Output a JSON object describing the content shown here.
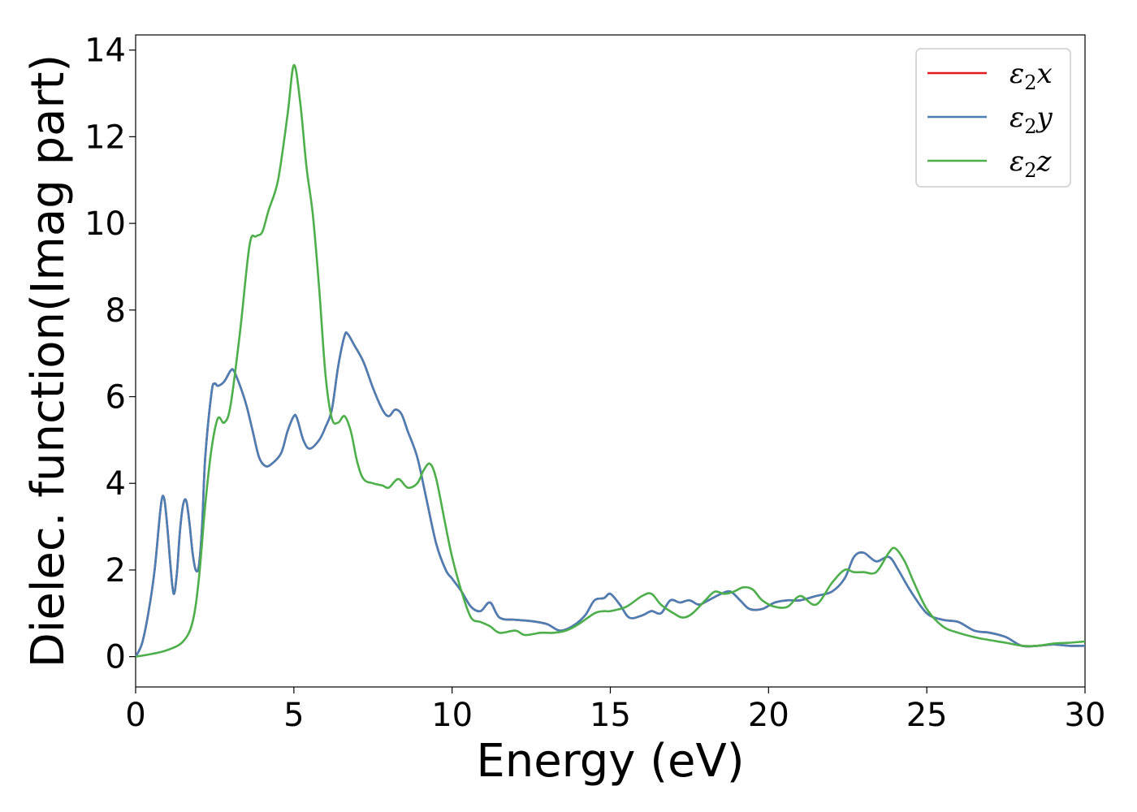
{
  "chart_data": {
    "type": "line",
    "xlabel": "Energy (eV)",
    "ylabel": "Dielec. function(Imag part)",
    "xlim": [
      0,
      30
    ],
    "ylim": [
      -0.7,
      14.35
    ],
    "xticks": [
      0,
      5,
      10,
      15,
      20,
      25,
      30
    ],
    "yticks": [
      0,
      2,
      4,
      6,
      8,
      10,
      12,
      14
    ],
    "grid": false,
    "legend_position": "top-right",
    "series": [
      {
        "name": "ε2x",
        "symbol": "ε",
        "subscript": "2",
        "suffix": "x",
        "color": "#e41a1c",
        "x": [
          0,
          0.2,
          0.4,
          0.6,
          0.8,
          0.9,
          1.0,
          1.1,
          1.2,
          1.3,
          1.4,
          1.5,
          1.6,
          1.7,
          1.8,
          1.9,
          2.0,
          2.1,
          2.2,
          2.4,
          2.5,
          2.6,
          2.8,
          3.0,
          3.1,
          3.3,
          3.5,
          3.7,
          3.9,
          4.1,
          4.3,
          4.6,
          4.8,
          5.0,
          5.1,
          5.3,
          5.5,
          5.8,
          6.0,
          6.2,
          6.4,
          6.6,
          6.7,
          6.9,
          7.2,
          7.5,
          7.8,
          8.0,
          8.2,
          8.4,
          8.6,
          8.9,
          9.2,
          9.5,
          9.8,
          10.0,
          10.3,
          10.6,
          10.9,
          11.2,
          11.5,
          12.0,
          12.5,
          13.0,
          13.4,
          13.8,
          14.2,
          14.5,
          14.8,
          15.0,
          15.3,
          15.6,
          16.0,
          16.3,
          16.6,
          16.9,
          17.2,
          17.5,
          17.8,
          18.1,
          18.5,
          18.8,
          19.1,
          19.4,
          19.8,
          20.2,
          20.6,
          21.0,
          21.5,
          22.0,
          22.4,
          22.7,
          23.0,
          23.4,
          23.8,
          24.1,
          24.5,
          25.0,
          25.5,
          26.0,
          26.5,
          27.0,
          27.5,
          28.0,
          28.5,
          29.0,
          29.5,
          30.0
        ],
        "values": [
          0,
          0.3,
          1.0,
          2.0,
          3.5,
          3.65,
          3.0,
          2.1,
          1.45,
          1.9,
          2.9,
          3.5,
          3.6,
          3.1,
          2.4,
          2.0,
          2.1,
          3.0,
          4.6,
          6.1,
          6.3,
          6.25,
          6.35,
          6.6,
          6.6,
          6.25,
          5.8,
          5.2,
          4.6,
          4.4,
          4.45,
          4.7,
          5.2,
          5.55,
          5.5,
          5.0,
          4.8,
          5.0,
          5.3,
          5.7,
          6.7,
          7.4,
          7.45,
          7.2,
          6.8,
          6.2,
          5.7,
          5.55,
          5.7,
          5.6,
          5.2,
          4.6,
          3.6,
          2.6,
          2.0,
          1.8,
          1.5,
          1.15,
          1.05,
          1.25,
          0.9,
          0.85,
          0.82,
          0.75,
          0.6,
          0.7,
          0.95,
          1.3,
          1.35,
          1.45,
          1.2,
          0.9,
          0.95,
          1.05,
          1.0,
          1.3,
          1.25,
          1.3,
          1.2,
          1.3,
          1.45,
          1.5,
          1.3,
          1.1,
          1.1,
          1.25,
          1.3,
          1.3,
          1.4,
          1.5,
          1.8,
          2.3,
          2.4,
          2.2,
          2.3,
          2.0,
          1.5,
          1.0,
          0.85,
          0.8,
          0.6,
          0.55,
          0.45,
          0.25,
          0.25,
          0.28,
          0.25,
          0.25
        ]
      },
      {
        "name": "ε2y",
        "symbol": "ε",
        "subscript": "2",
        "suffix": "y",
        "color": "#4a7fb5",
        "x": [
          0,
          0.2,
          0.4,
          0.6,
          0.8,
          0.9,
          1.0,
          1.1,
          1.2,
          1.3,
          1.4,
          1.5,
          1.6,
          1.7,
          1.8,
          1.9,
          2.0,
          2.1,
          2.2,
          2.4,
          2.5,
          2.6,
          2.8,
          3.0,
          3.1,
          3.3,
          3.5,
          3.7,
          3.9,
          4.1,
          4.3,
          4.6,
          4.8,
          5.0,
          5.1,
          5.3,
          5.5,
          5.8,
          6.0,
          6.2,
          6.4,
          6.6,
          6.7,
          6.9,
          7.2,
          7.5,
          7.8,
          8.0,
          8.2,
          8.4,
          8.6,
          8.9,
          9.2,
          9.5,
          9.8,
          10.0,
          10.3,
          10.6,
          10.9,
          11.2,
          11.5,
          12.0,
          12.5,
          13.0,
          13.4,
          13.8,
          14.2,
          14.5,
          14.8,
          15.0,
          15.3,
          15.6,
          16.0,
          16.3,
          16.6,
          16.9,
          17.2,
          17.5,
          17.8,
          18.1,
          18.5,
          18.8,
          19.1,
          19.4,
          19.8,
          20.2,
          20.6,
          21.0,
          21.5,
          22.0,
          22.4,
          22.7,
          23.0,
          23.4,
          23.8,
          24.1,
          24.5,
          25.0,
          25.5,
          26.0,
          26.5,
          27.0,
          27.5,
          28.0,
          28.5,
          29.0,
          29.5,
          30.0
        ],
        "values": [
          0,
          0.3,
          1.0,
          2.0,
          3.5,
          3.65,
          3.0,
          2.1,
          1.45,
          1.9,
          2.9,
          3.5,
          3.6,
          3.1,
          2.4,
          2.0,
          2.1,
          3.0,
          4.6,
          6.1,
          6.3,
          6.25,
          6.35,
          6.6,
          6.6,
          6.25,
          5.8,
          5.2,
          4.6,
          4.4,
          4.45,
          4.7,
          5.2,
          5.55,
          5.5,
          5.0,
          4.8,
          5.0,
          5.3,
          5.7,
          6.7,
          7.4,
          7.45,
          7.2,
          6.8,
          6.2,
          5.7,
          5.55,
          5.7,
          5.6,
          5.2,
          4.6,
          3.6,
          2.6,
          2.0,
          1.8,
          1.5,
          1.15,
          1.05,
          1.25,
          0.9,
          0.85,
          0.82,
          0.75,
          0.6,
          0.7,
          0.95,
          1.3,
          1.35,
          1.45,
          1.2,
          0.9,
          0.95,
          1.05,
          1.0,
          1.3,
          1.25,
          1.3,
          1.2,
          1.3,
          1.45,
          1.5,
          1.3,
          1.1,
          1.1,
          1.25,
          1.3,
          1.3,
          1.4,
          1.5,
          1.8,
          2.3,
          2.4,
          2.2,
          2.3,
          2.0,
          1.5,
          1.0,
          0.85,
          0.8,
          0.6,
          0.55,
          0.45,
          0.25,
          0.25,
          0.28,
          0.25,
          0.25
        ]
      },
      {
        "name": "ε2z",
        "symbol": "ε",
        "subscript": "2",
        "suffix": "z",
        "color": "#4daf4a",
        "x": [
          0,
          0.5,
          1.0,
          1.5,
          1.8,
          2.0,
          2.2,
          2.4,
          2.6,
          2.8,
          3.0,
          3.3,
          3.6,
          3.8,
          4.0,
          4.2,
          4.5,
          4.8,
          5.0,
          5.2,
          5.4,
          5.6,
          5.8,
          6.0,
          6.2,
          6.4,
          6.6,
          6.8,
          7.0,
          7.2,
          7.5,
          7.8,
          8.0,
          8.3,
          8.6,
          8.9,
          9.1,
          9.3,
          9.5,
          9.8,
          10.0,
          10.3,
          10.6,
          10.9,
          11.2,
          11.5,
          12.0,
          12.3,
          12.8,
          13.2,
          13.6,
          14.0,
          14.5,
          14.8,
          15.0,
          15.5,
          16.0,
          16.3,
          16.6,
          17.0,
          17.3,
          17.6,
          18.0,
          18.3,
          18.6,
          18.9,
          19.2,
          19.5,
          19.8,
          20.2,
          20.6,
          21.0,
          21.5,
          22.0,
          22.4,
          22.7,
          23.0,
          23.4,
          23.8,
          24.0,
          24.3,
          24.6,
          25.0,
          25.5,
          26.0,
          26.5,
          27.0,
          27.5,
          28.0,
          28.5,
          29.0,
          29.5,
          30.0
        ],
        "values": [
          0,
          0.06,
          0.15,
          0.35,
          0.8,
          1.8,
          3.5,
          4.8,
          5.5,
          5.4,
          5.8,
          7.5,
          9.5,
          9.7,
          9.8,
          10.3,
          11.0,
          12.5,
          13.65,
          12.8,
          11.3,
          10.2,
          8.5,
          6.5,
          5.5,
          5.4,
          5.55,
          5.2,
          4.5,
          4.1,
          4.0,
          3.95,
          3.9,
          4.1,
          3.9,
          4.0,
          4.3,
          4.45,
          4.1,
          3.0,
          2.3,
          1.5,
          0.9,
          0.8,
          0.7,
          0.55,
          0.6,
          0.5,
          0.55,
          0.55,
          0.6,
          0.75,
          1.0,
          1.05,
          1.05,
          1.15,
          1.4,
          1.45,
          1.2,
          1.0,
          0.9,
          1.0,
          1.3,
          1.5,
          1.45,
          1.5,
          1.6,
          1.55,
          1.3,
          1.15,
          1.15,
          1.4,
          1.2,
          1.7,
          2.0,
          1.95,
          1.95,
          1.95,
          2.4,
          2.5,
          2.2,
          1.7,
          1.1,
          0.7,
          0.55,
          0.45,
          0.38,
          0.32,
          0.25,
          0.25,
          0.3,
          0.32,
          0.35
        ]
      }
    ]
  }
}
